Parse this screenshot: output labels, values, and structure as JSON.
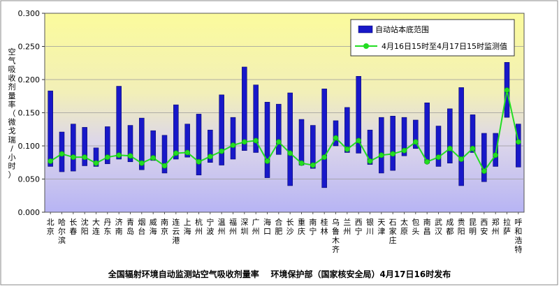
{
  "chart_data": {
    "type": "bar",
    "title": "全国辐射环境自动监测站空气吸收剂量率    环境保护部（国家核安全局）4月17日16时发布",
    "xlabel": "",
    "ylabel": "空气吸收剂量率（微戈瑞/小时）",
    "ylim": [
      0,
      0.3
    ],
    "yticks": [
      "0.000",
      "0.050",
      "0.100",
      "0.150",
      "0.200",
      "0.250",
      "0.300"
    ],
    "grid": true,
    "legend_position": "top-right",
    "categories": [
      "北京",
      "哈尔滨",
      "长春",
      "沈阳",
      "大连",
      "丹东",
      "济南",
      "青岛",
      "烟台",
      "威海",
      "南京",
      "连云港",
      "上海",
      "杭州",
      "宁波",
      "温州",
      "福州",
      "深圳",
      "广州",
      "海口",
      "合肥",
      "长沙",
      "重庆",
      "南宁",
      "桂林",
      "乌鲁木齐",
      "兰州",
      "西宁",
      "银川",
      "天津",
      "石家庄",
      "太原",
      "包头",
      "南昌",
      "武汉",
      "成都",
      "贵阳",
      "昆明",
      "西安",
      "郑州",
      "拉萨",
      "呼和浩特"
    ],
    "series": [
      {
        "name": "自动站本底范围",
        "kind": "range_bar",
        "color": "#1818c8",
        "low": [
          0.069,
          0.061,
          0.062,
          0.07,
          0.069,
          0.073,
          0.08,
          0.076,
          0.064,
          0.078,
          0.059,
          0.08,
          0.083,
          0.056,
          0.075,
          0.071,
          0.08,
          0.093,
          0.09,
          0.052,
          0.087,
          0.04,
          0.071,
          0.066,
          0.037,
          0.1,
          0.09,
          0.089,
          0.072,
          0.059,
          0.063,
          0.085,
          0.096,
          0.074,
          0.069,
          0.074,
          0.04,
          0.09,
          0.046,
          0.069,
          0.143,
          0.068
        ],
        "high": [
          0.183,
          0.121,
          0.133,
          0.128,
          0.097,
          0.129,
          0.19,
          0.131,
          0.142,
          0.123,
          0.116,
          0.162,
          0.133,
          0.148,
          0.124,
          0.177,
          0.143,
          0.219,
          0.192,
          0.166,
          0.163,
          0.18,
          0.14,
          0.131,
          0.186,
          0.138,
          0.158,
          0.205,
          0.124,
          0.143,
          0.145,
          0.143,
          0.139,
          0.165,
          0.13,
          0.156,
          0.188,
          0.147,
          0.119,
          0.119,
          0.226,
          0.133
        ]
      },
      {
        "name": "4月16日15时至4月17日15时监测值",
        "kind": "line",
        "color": "#22dd22",
        "values": [
          0.077,
          0.088,
          0.083,
          0.083,
          0.074,
          0.083,
          0.086,
          0.085,
          0.074,
          0.082,
          0.07,
          0.089,
          0.09,
          0.076,
          0.084,
          0.092,
          0.101,
          0.106,
          0.108,
          0.077,
          0.106,
          0.089,
          0.074,
          0.071,
          0.083,
          0.112,
          0.095,
          0.108,
          0.077,
          0.086,
          0.088,
          0.093,
          0.106,
          0.076,
          0.083,
          0.096,
          0.08,
          0.096,
          0.062,
          0.086,
          0.184,
          0.106
        ]
      }
    ]
  }
}
